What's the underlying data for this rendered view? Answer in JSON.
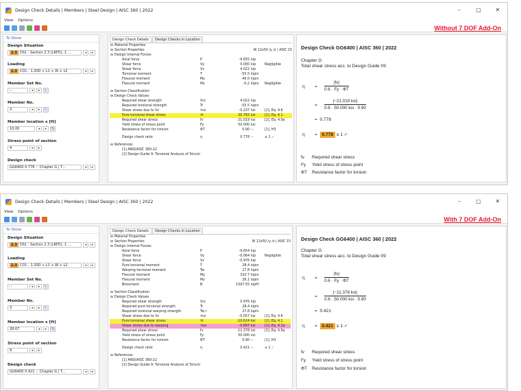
{
  "windows": [
    {
      "title": "Design Check Details | Members | Steel Design | AISC 360 | 2022",
      "menu": [
        "View",
        "Options"
      ],
      "tagline": "Without 7 DOF Add-On",
      "left": {
        "header": "To Show",
        "design_situation": {
          "label": "Design Situation",
          "badge": "2.3",
          "value": "DS1 - Section 2.3 (LRFD), 1 ..."
        },
        "loading": {
          "label": "Loading",
          "badge": "2.3",
          "value": "CO1 - 1.20D + L1 + W + L2"
        },
        "member_set": {
          "label": "Member Set No.",
          "value": "--"
        },
        "member": {
          "label": "Member No.",
          "value": "3"
        },
        "location": {
          "label": "Member location x [ft]",
          "value": "10.00"
        },
        "stress_point": {
          "label": "Stress point of section",
          "value": "4"
        },
        "design_check": {
          "label": "Design check",
          "value": "GG6400  0.778",
          "chapter": "Chapter G | T..."
        }
      },
      "middle": {
        "tabs": [
          "Design Check Details",
          "Design Checks in Location"
        ],
        "rows": [
          {
            "t": "sec",
            "c1": "Material Properties"
          },
          {
            "t": "sec",
            "c1": "Section Properties",
            "c5": "W 12x50 /y /z | AISC 15"
          },
          {
            "t": "sec",
            "c1": "Design Internal Forces"
          },
          {
            "c1": "Axial force",
            "c2": "P",
            "c3": "-9.655",
            "c4": "kip"
          },
          {
            "c1": "Shear force",
            "c2": "Vy",
            "c3": "0.000",
            "c4": "kip",
            "c5": "Negligible"
          },
          {
            "c1": "Shear force",
            "c2": "Vz",
            "c3": "4.022",
            "c4": "kip"
          },
          {
            "c1": "Torsional moment",
            "c2": "T",
            "c3": "-55.5",
            "c4": "kipin"
          },
          {
            "c1": "Flexural moment",
            "c2": "My",
            "c3": "40.0",
            "c4": "kipin"
          },
          {
            "c1": "Flexural moment",
            "c2": "Mz",
            "c3": "-0.2",
            "c4": "kipin",
            "c5": "Negligible"
          },
          {
            "t": "gap"
          },
          {
            "t": "sec",
            "c1": "Section Classification"
          },
          {
            "t": "sec",
            "c1": "Design Check Values"
          },
          {
            "c1": "Required shear strength",
            "c2": "Vrz",
            "c3": "4.022",
            "c4": "kip"
          },
          {
            "c1": "Required torsional strength",
            "c2": "Tr",
            "c3": "-55.5",
            "c4": "kipin"
          },
          {
            "c1": "Shear stress due to Vz",
            "c2": "τvz",
            "c3": "-0.237",
            "c4": "ksi",
            "c5": "[2], Eq. 4.6"
          },
          {
            "t": "hl",
            "c1": "Pure torsional shear stress",
            "c2": "τt",
            "c3": "20.783",
            "c4": "ksi",
            "c5": "[2], Eq. 4.1"
          },
          {
            "c1": "Required shear stress",
            "c2": "fv",
            "c3": "-21.019",
            "c4": "ksi",
            "c5": "[2], Eq. 4.9a"
          },
          {
            "c1": "Yield stress of stress point",
            "c2": "Fy",
            "c3": "50.000",
            "c4": "ksi"
          },
          {
            "c1": "Resistance factor for torsion",
            "c2": "ΦT",
            "c3": "0.90",
            "c4": "--",
            "c5": "[1], H3"
          },
          {
            "t": "gap"
          },
          {
            "c1": "Design check ratio",
            "c2": "η",
            "c3": "0.778",
            "c4": "--",
            "c5": "≤ 1 ✓"
          },
          {
            "t": "gap"
          },
          {
            "t": "sec",
            "c1": "References"
          },
          {
            "c1": "[1] ANSI/AISC 360-22"
          },
          {
            "c1": "[2] Design Guide 9: Torsional Analysis of Structural Steel Members, Seaburg, P. A.; Carter, C. J., 1997"
          }
        ]
      },
      "right": {
        "title": "Design Check GG6400 | AISC 360 | 2022",
        "chapter": "Chapter G",
        "desc": "Total shear stress acc. to Design Guide 09",
        "eta": "η",
        "f1n": "|fv|",
        "f1d": "0.6 · Fy · ΦT",
        "f2n": "|−21.019 ksi|",
        "f2d": "0.6 · 50.000 ksi · 0.90",
        "val": "0.778",
        "ratio": "0.778",
        "cond": "≤ 1 ✓",
        "legend": [
          [
            "fv",
            "Required shear stress"
          ],
          [
            "Fy",
            "Yield stress of stress point"
          ],
          [
            "ΦT",
            "Resistance factor for torsion"
          ]
        ]
      }
    },
    {
      "title": "Design Check Details | Members | Steel Design | AISC 360 | 2022",
      "menu": [
        "View",
        "Options"
      ],
      "tagline": "With 7 DOF Add-On",
      "left": {
        "header": "To Show",
        "design_situation": {
          "label": "Design Situation",
          "badge": "2.3",
          "value": "DS1 - Section 2.3 (LRFD), 1 ..."
        },
        "loading": {
          "label": "Loading",
          "badge": "2.3",
          "value": "CO1 - 1.20D + L1 + W + L2"
        },
        "member_set": {
          "label": "Member Set No.",
          "value": "--"
        },
        "member": {
          "label": "Member No.",
          "value": "3"
        },
        "location": {
          "label": "Member location x [ft]",
          "value": "28.67"
        },
        "stress_point": {
          "label": "Stress point of section",
          "value": "9"
        },
        "design_check": {
          "label": "Design check",
          "value": "GG6400  0.421",
          "chapter": "Chapter G | T..."
        }
      },
      "middle": {
        "tabs": [
          "Design Check Details",
          "Design Checks in Location"
        ],
        "rows": [
          {
            "t": "sec",
            "c1": "Material Properties"
          },
          {
            "t": "sec",
            "c1": "Section Properties",
            "c5": "W 12x50 /y /z | AISC 15"
          },
          {
            "t": "sec",
            "c1": "Design Internal Forces"
          },
          {
            "c1": "Axial force",
            "c2": "P",
            "c3": "-9.654",
            "c4": "kip"
          },
          {
            "c1": "Shear force",
            "c2": "Vy",
            "c3": "-0.064",
            "c4": "kip",
            "c5": "Negligible"
          },
          {
            "c1": "Shear force",
            "c2": "Vz",
            "c3": "-0.976",
            "c4": "kip"
          },
          {
            "c1": "Pure torsional moment",
            "c2": "T",
            "c3": "28.4",
            "c4": "kipin"
          },
          {
            "c1": "Warping torsional moment",
            "c2": "Tw",
            "c3": "27.8",
            "c4": "kipin"
          },
          {
            "c1": "Flexural moment",
            "c2": "My",
            "c3": "310.7",
            "c4": "kipin"
          },
          {
            "c1": "Flexural moment",
            "c2": "Mz",
            "c3": "26.1",
            "c4": "kipin"
          },
          {
            "c1": "Bimoment",
            "c2": "B",
            "c3": "1597.55",
            "c4": "kipft²"
          },
          {
            "t": "gap"
          },
          {
            "t": "sec",
            "c1": "Section Classification"
          },
          {
            "t": "sec",
            "c1": "Design Check Values"
          },
          {
            "c1": "Required shear strength",
            "c2": "Vrz",
            "c3": "0.976",
            "c4": "kip"
          },
          {
            "c1": "Required pure torsional strength",
            "c2": "Tr",
            "c3": "28.4",
            "c4": "kipin"
          },
          {
            "c1": "Required torsional warping strength",
            "c2": "Tw,r",
            "c3": "27.8",
            "c4": "kipin"
          },
          {
            "c1": "Shear stress due to Vz",
            "c2": "τvz",
            "c3": "-0.057",
            "c4": "ksi",
            "c5": "[2], Eq. 4.6"
          },
          {
            "t": "hl",
            "c1": "Pure torsional shear stress",
            "c2": "τt",
            "c3": "-10.624",
            "c4": "ksi",
            "c5": "[2], Eq. 4.1"
          },
          {
            "t": "hlp",
            "c1": "Shear stress due to warping",
            "c2": "τws",
            "c3": "-0.697",
            "c4": "ksi",
            "c5": "[2], Eq. 4.2a"
          },
          {
            "c1": "Required shear stress",
            "c2": "fv",
            "c3": "-11.378",
            "c4": "ksi",
            "c5": "[2], Eq. 4.9a"
          },
          {
            "c1": "Yield stress of stress point",
            "c2": "Fy",
            "c3": "50.000",
            "c4": "ksi"
          },
          {
            "c1": "Resistance factor for torsion",
            "c2": "ΦT",
            "c3": "0.90",
            "c4": "--",
            "c5": "[1], H3"
          },
          {
            "t": "gap"
          },
          {
            "c1": "Design check ratio",
            "c2": "η",
            "c3": "0.421",
            "c4": "--",
            "c5": "≤ 1 ✓"
          },
          {
            "t": "gap"
          },
          {
            "t": "sec",
            "c1": "References"
          },
          {
            "c1": "[1] ANSI/AISC 360-22"
          },
          {
            "c1": "[2] Design Guide 9: Torsional Analysis of Structural Steel Members, Seaburg, P. A.; Carter, C. J., 1997"
          }
        ]
      },
      "right": {
        "title": "Design Check GG6400 | AISC 360 | 2022",
        "chapter": "Chapter G",
        "desc": "Total shear stress acc. to Design Guide 09",
        "eta": "η",
        "f1n": "|fv|",
        "f1d": "0.6 · Fy · ΦT",
        "f2n": "|−11.378 ksi|",
        "f2d": "0.6 · 50.000 ksi · 0.90",
        "val": "0.421",
        "ratio": "0.421",
        "cond": "≤ 1 ✓",
        "legend": [
          [
            "fv",
            "Required shear stress"
          ],
          [
            "Fy",
            "Yield stress of stress point"
          ],
          [
            "ΦT",
            "Resistance factor for torsion"
          ]
        ]
      }
    }
  ],
  "colors": {
    "highlight_yellow": "#f6f23b",
    "highlight_pink": "#f4a0cf",
    "ratio_badge": "#f0a733",
    "tagline": "#e8192c",
    "check": "#2aa24a"
  }
}
